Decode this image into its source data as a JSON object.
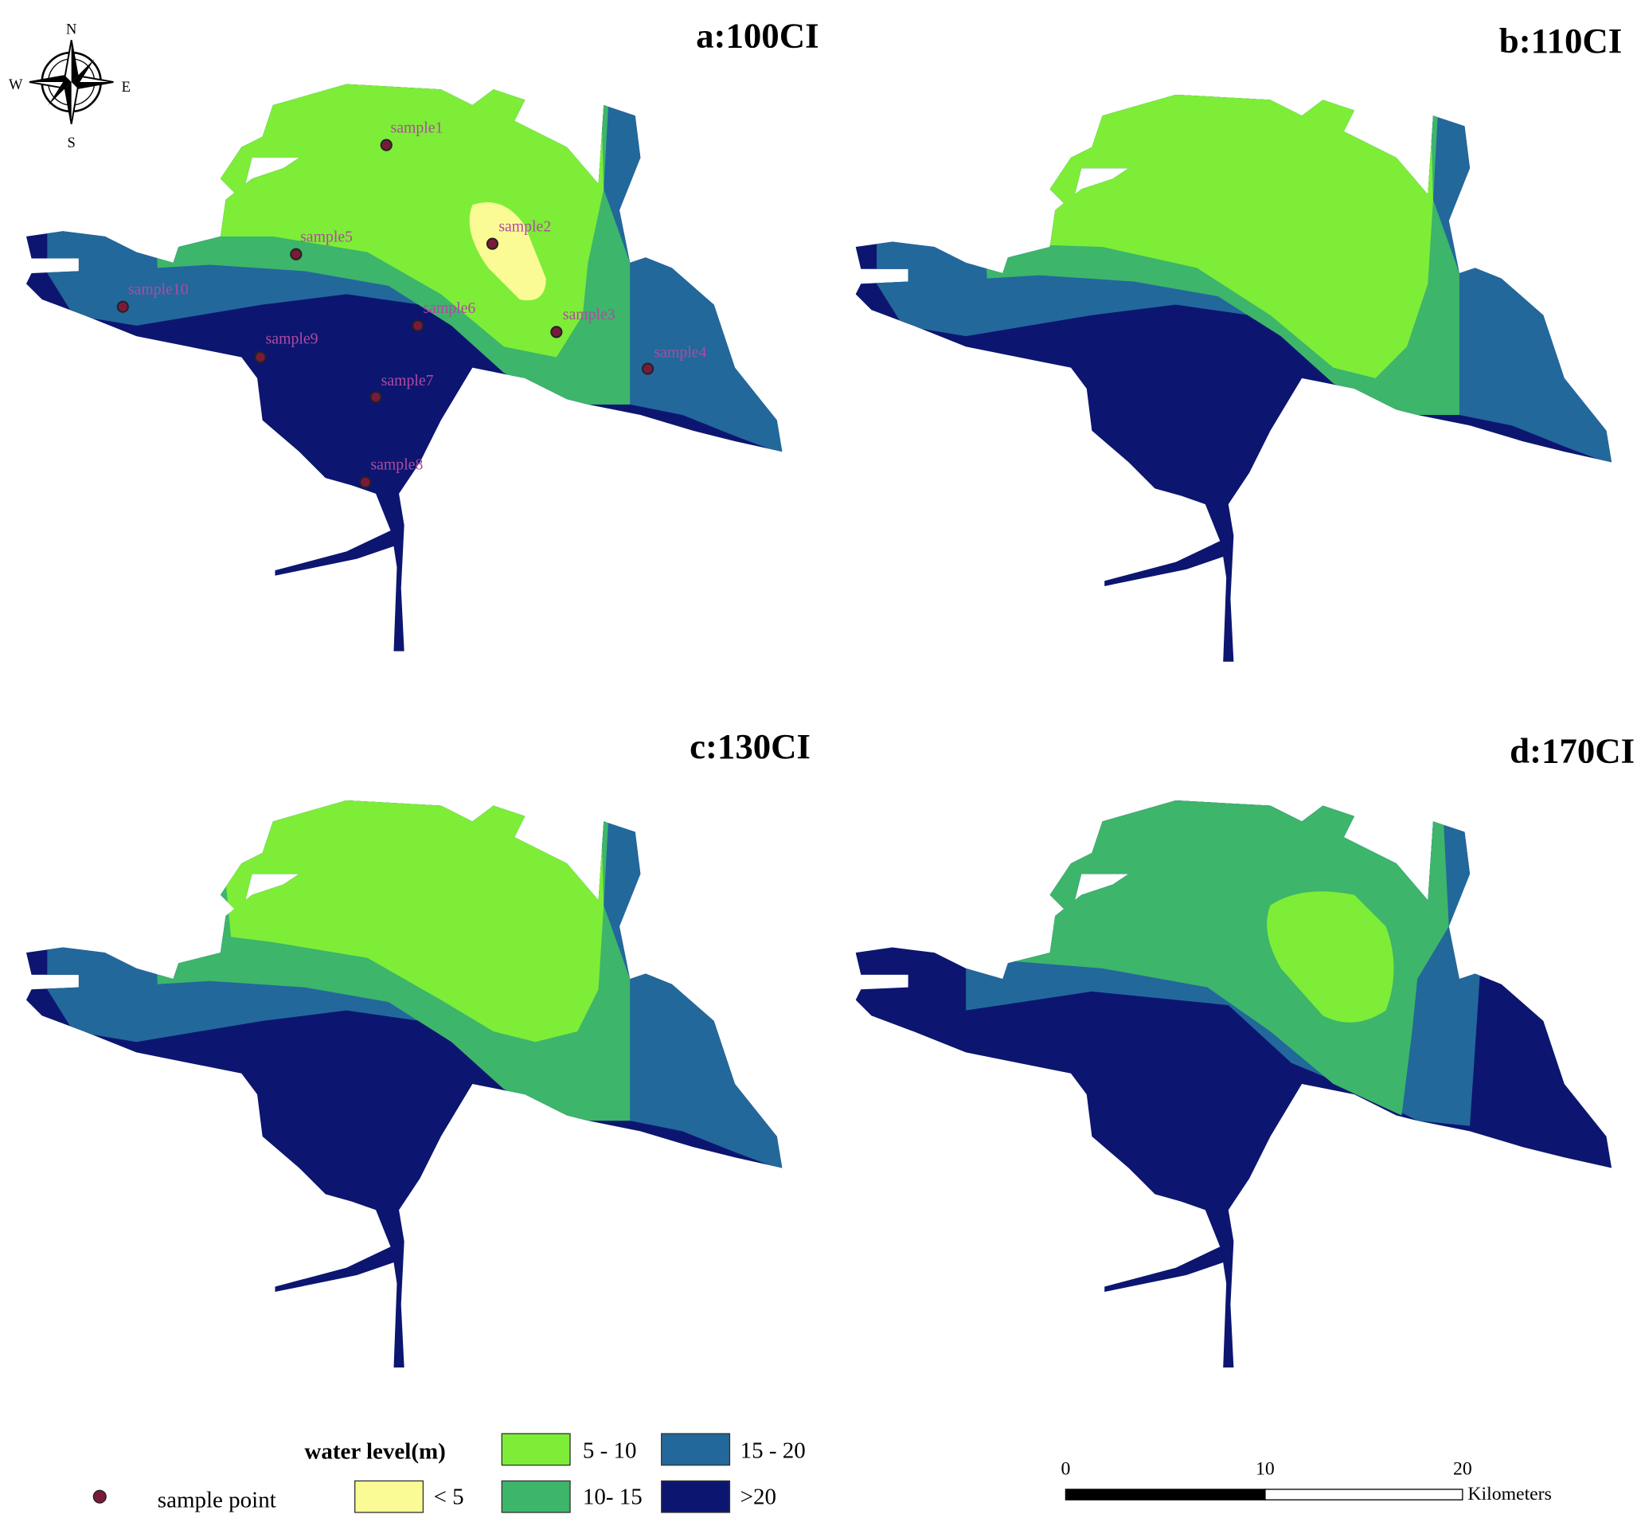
{
  "panels": [
    {
      "title": "a:100CI"
    },
    {
      "title": "b:110CI"
    },
    {
      "title": "c:130CI"
    },
    {
      "title": "d:170CI"
    }
  ],
  "samples": [
    "sample1",
    "sample2",
    "sample3",
    "sample4",
    "sample5",
    "sample6",
    "sample7",
    "sample8",
    "sample9",
    "sample10"
  ],
  "compass": {
    "n": "N",
    "s": "S",
    "e": "E",
    "w": "W"
  },
  "legend": {
    "title": "water level(m)",
    "sample_point": "sample point",
    "classes": [
      {
        "label": "< 5",
        "color": "#fbfb96"
      },
      {
        "label": "5 - 10",
        "color": "#7ded38"
      },
      {
        "label": "10- 15",
        "color": "#3db56a"
      },
      {
        "label": "15 - 20",
        "color": "#22689b"
      },
      {
        "label": ">20",
        "color": "#0c1670"
      }
    ]
  },
  "scale_bar": {
    "ticks": [
      "0",
      "10",
      "20"
    ],
    "unit": "Kilometers"
  }
}
